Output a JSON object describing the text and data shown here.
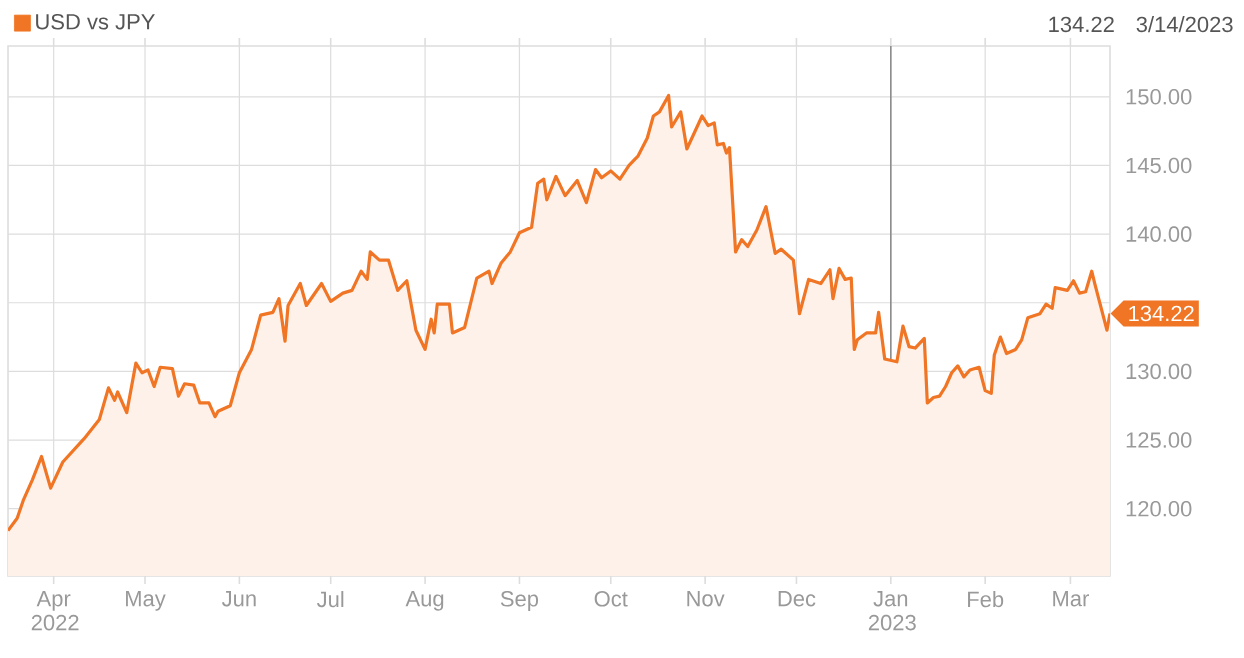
{
  "chart_data": {
    "type": "area",
    "x": [
      "2022-03-17",
      "2022-03-20",
      "2022-03-22",
      "2022-03-25",
      "2022-03-28",
      "2022-03-31",
      "2022-04-04",
      "2022-04-11",
      "2022-04-16",
      "2022-04-19",
      "2022-04-21",
      "2022-04-22",
      "2022-04-25",
      "2022-04-28",
      "2022-04-30",
      "2022-05-02",
      "2022-05-04",
      "2022-05-06",
      "2022-05-10",
      "2022-05-12",
      "2022-05-14",
      "2022-05-17",
      "2022-05-19",
      "2022-05-22",
      "2022-05-24",
      "2022-05-25",
      "2022-05-29",
      "2022-06-01",
      "2022-06-05",
      "2022-06-08",
      "2022-06-12",
      "2022-06-14",
      "2022-06-16",
      "2022-06-17",
      "2022-06-21",
      "2022-06-23",
      "2022-06-28",
      "2022-07-01",
      "2022-07-05",
      "2022-07-08",
      "2022-07-11",
      "2022-07-13",
      "2022-07-14",
      "2022-07-17",
      "2022-07-20",
      "2022-07-23",
      "2022-07-26",
      "2022-07-29",
      "2022-08-01",
      "2022-08-03",
      "2022-08-04",
      "2022-08-05",
      "2022-08-09",
      "2022-08-10",
      "2022-08-14",
      "2022-08-18",
      "2022-08-22",
      "2022-08-23",
      "2022-08-26",
      "2022-08-29",
      "2022-09-01",
      "2022-09-05",
      "2022-09-07",
      "2022-09-09",
      "2022-09-10",
      "2022-09-13",
      "2022-09-16",
      "2022-09-20",
      "2022-09-23",
      "2022-09-26",
      "2022-09-28",
      "2022-10-01",
      "2022-10-04",
      "2022-10-07",
      "2022-10-10",
      "2022-10-13",
      "2022-10-15",
      "2022-10-17",
      "2022-10-20",
      "2022-10-21",
      "2022-10-24",
      "2022-10-26",
      "2022-10-31",
      "2022-11-02",
      "2022-11-04",
      "2022-11-05",
      "2022-11-07",
      "2022-11-08",
      "2022-11-09",
      "2022-11-11",
      "2022-11-13",
      "2022-11-15",
      "2022-11-18",
      "2022-11-21",
      "2022-11-24",
      "2022-11-26",
      "2022-11-30",
      "2022-12-02",
      "2022-12-05",
      "2022-12-09",
      "2022-12-12",
      "2022-12-13",
      "2022-12-15",
      "2022-12-17",
      "2022-12-19",
      "2022-12-20",
      "2022-12-21",
      "2022-12-24",
      "2022-12-27",
      "2022-12-28",
      "2022-12-30",
      "2023-01-03",
      "2023-01-05",
      "2023-01-07",
      "2023-01-09",
      "2023-01-12",
      "2023-01-13",
      "2023-01-15",
      "2023-01-17",
      "2023-01-19",
      "2023-01-21",
      "2023-01-23",
      "2023-01-25",
      "2023-01-27",
      "2023-01-30",
      "2023-02-01",
      "2023-02-03",
      "2023-02-04",
      "2023-02-06",
      "2023-02-08",
      "2023-02-11",
      "2023-02-13",
      "2023-02-15",
      "2023-02-19",
      "2023-02-21",
      "2023-02-23",
      "2023-02-24",
      "2023-02-28",
      "2023-03-02",
      "2023-03-04",
      "2023-03-06",
      "2023-03-08",
      "2023-03-09",
      "2023-03-13",
      "2023-03-14"
    ],
    "series": [
      {
        "name": "USD vs JPY",
        "color": "#f07524",
        "values": [
          118.4,
          119.3,
          120.6,
          122.1,
          123.8,
          121.5,
          123.4,
          125.1,
          126.5,
          128.8,
          127.9,
          128.5,
          127.0,
          130.6,
          129.9,
          130.1,
          128.9,
          130.3,
          130.2,
          128.2,
          129.1,
          129.0,
          127.7,
          127.7,
          126.7,
          127.1,
          127.5,
          129.9,
          131.6,
          134.1,
          134.3,
          135.3,
          132.2,
          134.8,
          136.4,
          134.8,
          136.4,
          135.1,
          135.7,
          135.9,
          137.3,
          136.7,
          138.7,
          138.1,
          138.1,
          135.9,
          136.6,
          133.0,
          131.6,
          133.8,
          132.8,
          134.9,
          134.9,
          132.8,
          133.2,
          136.8,
          137.3,
          136.4,
          137.9,
          138.7,
          140.1,
          140.5,
          143.7,
          144.0,
          142.5,
          144.2,
          142.8,
          143.9,
          142.3,
          144.7,
          144.1,
          144.6,
          144.0,
          145.0,
          145.7,
          147.0,
          148.6,
          148.9,
          150.1,
          147.8,
          148.9,
          146.2,
          148.6,
          147.9,
          148.1,
          146.5,
          146.6,
          145.9,
          146.3,
          138.7,
          139.6,
          139.1,
          140.3,
          142.0,
          138.6,
          138.9,
          138.1,
          134.2,
          136.7,
          136.4,
          137.4,
          135.3,
          137.5,
          136.7,
          136.8,
          131.6,
          132.3,
          132.8,
          132.8,
          134.3,
          130.9,
          130.7,
          133.3,
          131.8,
          131.7,
          132.4,
          127.7,
          128.1,
          128.2,
          128.9,
          129.9,
          130.4,
          129.6,
          130.1,
          130.3,
          128.6,
          128.4,
          131.2,
          132.5,
          131.3,
          131.6,
          132.3,
          133.9,
          134.2,
          134.9,
          134.6,
          136.1,
          135.9,
          136.6,
          135.7,
          135.8,
          137.3,
          136.4,
          133.0,
          134.22
        ]
      }
    ],
    "xlim": [
      "2022-03-17",
      "2023-03-14"
    ],
    "xticks": [
      {
        "value": "2022-04-01",
        "label": "Apr 2022"
      },
      {
        "value": "2022-05-01",
        "label": "May"
      },
      {
        "value": "2022-06-01",
        "label": "Jun"
      },
      {
        "value": "2022-07-01",
        "label": "Jul"
      },
      {
        "value": "2022-08-01",
        "label": "Aug"
      },
      {
        "value": "2022-09-01",
        "label": "Sep"
      },
      {
        "value": "2022-10-01",
        "label": "Oct"
      },
      {
        "value": "2022-11-01",
        "label": "Nov"
      },
      {
        "value": "2022-12-01",
        "label": "Dec"
      },
      {
        "value": "2023-01-01",
        "label": "Jan 2023"
      },
      {
        "value": "2023-02-01",
        "label": "Feb"
      },
      {
        "value": "2023-03-01",
        "label": "Mar"
      }
    ],
    "ylim": [
      115.1,
      153.7
    ],
    "yticks": [
      {
        "value": 120,
        "label": "120.00"
      },
      {
        "value": 125,
        "label": "125.00"
      },
      {
        "value": 130,
        "label": "130.00"
      },
      {
        "value": 135,
        "label": null
      },
      {
        "value": 140,
        "label": "140.00"
      },
      {
        "value": 145,
        "label": "145.00"
      },
      {
        "value": 150,
        "label": "150.00"
      }
    ],
    "ref_lines": [
      {
        "axis": "x",
        "value": "2023-01-01",
        "color": "#8c8c8c"
      }
    ],
    "annotations": [
      "134.22",
      "3/14/2023",
      {
        "text": "134.22",
        "x": "2023-03-14",
        "y": 134.22
      }
    ],
    "grid": true,
    "legend": "top left"
  }
}
